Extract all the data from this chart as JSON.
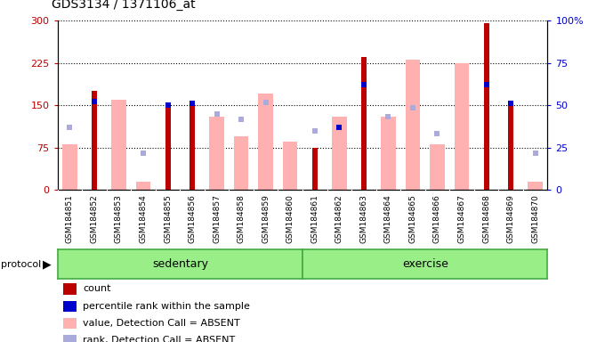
{
  "title": "GDS3134 / 1371106_at",
  "samples": [
    "GSM184851",
    "GSM184852",
    "GSM184853",
    "GSM184854",
    "GSM184855",
    "GSM184856",
    "GSM184857",
    "GSM184858",
    "GSM184859",
    "GSM184860",
    "GSM184861",
    "GSM184862",
    "GSM184863",
    "GSM184864",
    "GSM184865",
    "GSM184866",
    "GSM184867",
    "GSM184868",
    "GSM184869",
    "GSM184870"
  ],
  "count": [
    null,
    175,
    null,
    null,
    148,
    150,
    null,
    null,
    null,
    null,
    75,
    null,
    235,
    null,
    null,
    null,
    null,
    295,
    155,
    null
  ],
  "percentile_rank": [
    null,
    52,
    null,
    null,
    50,
    51,
    null,
    null,
    null,
    null,
    null,
    37,
    62,
    null,
    null,
    null,
    null,
    62,
    51,
    null
  ],
  "value_absent": [
    80,
    null,
    160,
    15,
    null,
    null,
    130,
    95,
    170,
    85,
    null,
    130,
    null,
    130,
    230,
    80,
    225,
    null,
    null,
    15
  ],
  "rank_absent": [
    110,
    null,
    null,
    65,
    null,
    null,
    135,
    125,
    155,
    null,
    105,
    null,
    null,
    130,
    145,
    100,
    null,
    null,
    null,
    65
  ],
  "ylim_left": [
    0,
    300
  ],
  "ylim_right": [
    0,
    100
  ],
  "yticks_left": [
    0,
    75,
    150,
    225,
    300
  ],
  "yticks_right": [
    0,
    25,
    50,
    75,
    100
  ],
  "count_color": "#bb0000",
  "percentile_color": "#0000cc",
  "value_absent_color": "#ffb0b0",
  "rank_absent_color": "#aaaadd",
  "bg_color": "#ffffff",
  "plot_bg": "#ffffff",
  "xticklabel_bg": "#cccccc",
  "protocol_bar_color": "#99ee88",
  "protocol_bar_edge": "#44aa44",
  "legend_items": [
    {
      "color": "#bb0000",
      "label": "count"
    },
    {
      "color": "#0000cc",
      "label": "percentile rank within the sample"
    },
    {
      "color": "#ffb0b0",
      "label": "value, Detection Call = ABSENT"
    },
    {
      "color": "#aaaadd",
      "label": "rank, Detection Call = ABSENT"
    }
  ]
}
